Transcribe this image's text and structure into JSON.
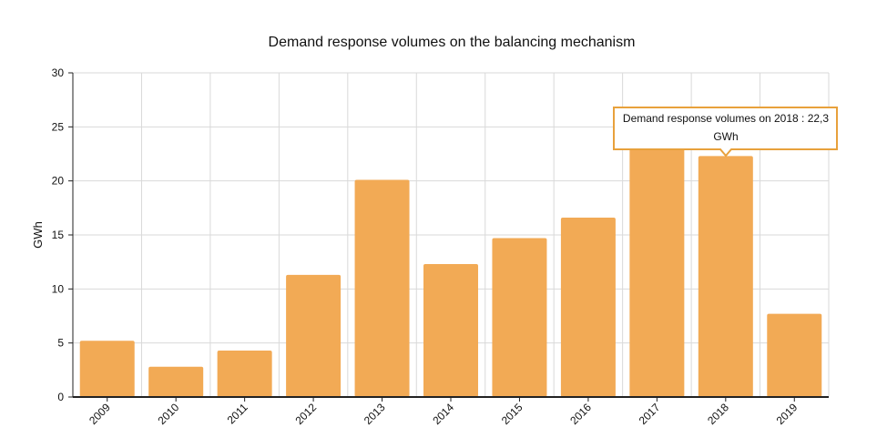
{
  "chart_data": {
    "type": "bar",
    "title": "Demand response volumes on the balancing mechanism",
    "ylabel": "GWh",
    "xlabel": "",
    "categories": [
      "2009",
      "2010",
      "2011",
      "2012",
      "2013",
      "2014",
      "2015",
      "2016",
      "2017",
      "2018",
      "2019"
    ],
    "values": [
      5.2,
      2.8,
      4.3,
      11.3,
      20.1,
      12.3,
      14.7,
      16.6,
      26.8,
      22.3,
      7.7
    ],
    "ylim": [
      0,
      30
    ],
    "yticks": [
      "0",
      "5",
      "10",
      "15",
      "20",
      "25",
      "30"
    ],
    "grid": true,
    "bar_color": "#f2aa55",
    "tooltip": {
      "line1": "Demand response volumes on 2018 : 22,3",
      "line2": "GWh",
      "border_color": "#e8a13c"
    }
  }
}
